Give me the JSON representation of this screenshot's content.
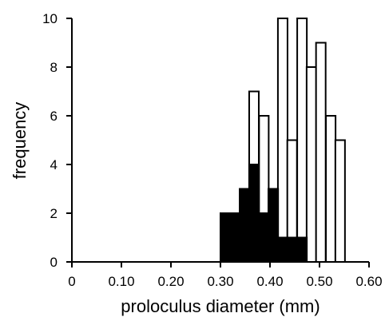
{
  "chart_data": {
    "type": "bar",
    "title": "",
    "xlabel": "proloculus diameter (mm)",
    "ylabel": "frequency",
    "xlim": [
      0,
      0.6
    ],
    "ylim": [
      0,
      10
    ],
    "x_ticks": [
      "0",
      "0.10",
      "0.20",
      "0.30",
      "0.40",
      "0.50",
      "0.60"
    ],
    "y_ticks": [
      "0",
      "2",
      "4",
      "6",
      "8",
      "10"
    ],
    "bin_width": 0.0194,
    "bin_starts": [
      0.3,
      0.319,
      0.339,
      0.358,
      0.378,
      0.397,
      0.416,
      0.435,
      0.455,
      0.474,
      0.493,
      0.513,
      0.532
    ],
    "series": [
      {
        "fill": "#000000",
        "values": [
          2,
          2,
          3,
          4,
          2,
          3,
          1,
          1,
          1,
          0,
          0,
          0,
          0
        ]
      },
      {
        "fill": "#ffffff",
        "values": [
          2,
          2,
          3,
          7,
          6,
          3,
          10,
          5,
          10,
          8,
          9,
          6,
          5
        ]
      }
    ],
    "grid": false,
    "legend": "none"
  }
}
